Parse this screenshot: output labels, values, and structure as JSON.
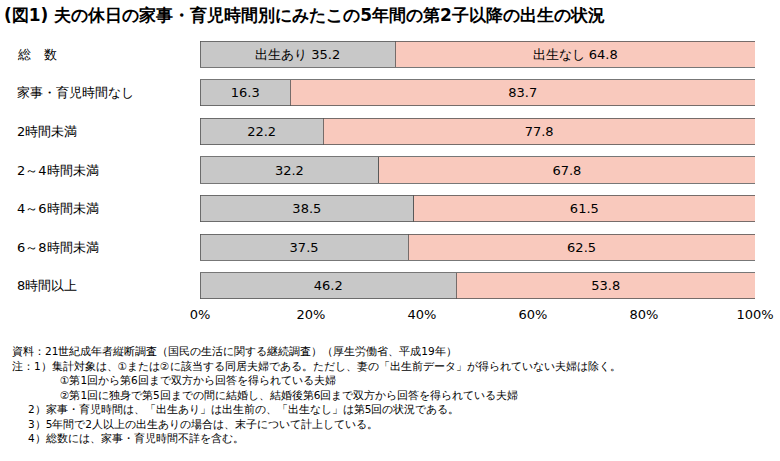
{
  "chart_data": {
    "type": "bar",
    "orientation": "horizontal",
    "stacked": true,
    "data_labels": true,
    "grid": false,
    "title": "(図1) 夫の休日の家事・育児時間別にみたこの5年間の第2子以降の出生の状況",
    "categories": [
      "総　数",
      "家事・育児時間なし",
      "2時間未満",
      "2～4時間未満",
      "4～6時間未満",
      "6～8時間未満",
      "8時間以上"
    ],
    "series": [
      {
        "name": "出生あり",
        "color": "#c8c8c8",
        "values": [
          35.2,
          16.3,
          22.2,
          32.2,
          38.5,
          37.5,
          46.2
        ],
        "value_labels": [
          "出生あり 35.2",
          "16.3",
          "22.2",
          "32.2",
          "38.5",
          "37.5",
          "46.2"
        ]
      },
      {
        "name": "出生なし",
        "color": "#f9c9bd",
        "values": [
          64.8,
          83.7,
          77.8,
          67.8,
          61.5,
          62.5,
          53.8
        ],
        "value_labels": [
          "出生なし 64.8",
          "83.7",
          "77.8",
          "67.8",
          "61.5",
          "62.5",
          "53.8"
        ]
      }
    ],
    "xlim": [
      0,
      100
    ],
    "xticks": [
      {
        "value": 0,
        "label": "0%"
      },
      {
        "value": 20,
        "label": "20%"
      },
      {
        "value": 40,
        "label": "40%"
      },
      {
        "value": 60,
        "label": "60%"
      },
      {
        "value": 80,
        "label": "80%"
      },
      {
        "value": 100,
        "label": "100%"
      }
    ],
    "annotations": [
      "資料：21世紀成年者縦断調査（国民の生活に関する継続調査）（厚生労働省、平成19年）",
      "注：1）集計対象は、①または②に該当する同居夫婦である。ただし、妻の「出生前データ」が得られていない夫婦は除く。",
      "①第1回から第6回まで双方から回答を得られている夫婦",
      "②第1回に独身で第5回までの間に結婚し、結婚後第6回まで双方から回答を得られている夫婦",
      "2）家事・育児時間は、「出生あり」は出生前の、「出生なし」は第5回の状況である。",
      "3）5年間で2人以上の出生ありの場合は、末子について計上している。",
      "4）総数には、家事・育児時間不詳を含む。"
    ]
  }
}
